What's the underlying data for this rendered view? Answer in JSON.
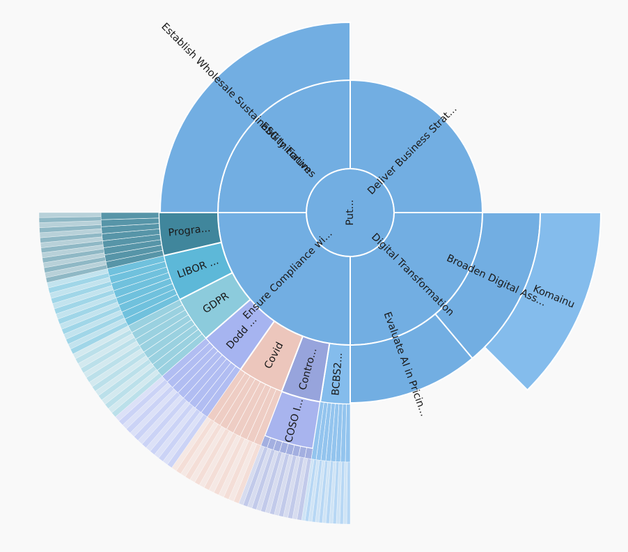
{
  "chart_data": {
    "type": "sunburst",
    "root": "Put...",
    "colors": {
      "blue": "#72aee2",
      "lightblue": "#84bcec",
      "teal": "#40869c",
      "cyan": "#5db8d8",
      "aqua": "#8ccbdc",
      "periwinkle": "#a6b4f0",
      "peach": "#ecc6bc",
      "slate": "#97a4dc",
      "lavender": "#a8b4ee"
    },
    "level1": [
      {
        "label": "Deliver Business Strat...",
        "from": 0,
        "to": 90,
        "color": "blue"
      },
      {
        "label": "Digital Transformation",
        "from": 90,
        "to": 180,
        "color": "blue"
      },
      {
        "label": "Ensure Compliance wi...",
        "from": 180,
        "to": 270,
        "color": "blue"
      },
      {
        "label": "ESG Initiatives",
        "from": 270,
        "to": 360,
        "color": "blue"
      }
    ],
    "level2": [
      {
        "label": "Broaden Digital Ass...",
        "from": 90,
        "to": 140,
        "color": "blue"
      },
      {
        "label": "Evaluate AI in Pricin...",
        "from": 140,
        "to": 180,
        "color": "blue"
      },
      {
        "label": "BCBS2...",
        "from": 180,
        "to": 189,
        "color": "lightblue"
      },
      {
        "label": "Contro...",
        "from": 189,
        "to": 201,
        "color": "slate"
      },
      {
        "label": "Covid",
        "from": 201,
        "to": 215,
        "color": "peach"
      },
      {
        "label": "Dodd ...",
        "from": 215,
        "to": 229,
        "color": "periwinkle"
      },
      {
        "label": "GDPR",
        "from": 229,
        "to": 243,
        "color": "aqua"
      },
      {
        "label": "LIBOR ...",
        "from": 243,
        "to": 257,
        "color": "cyan"
      },
      {
        "label": "Progra...",
        "from": 257,
        "to": 270,
        "color": "teal"
      },
      {
        "label": "Establish Wholesale Sustainability Forum",
        "from": 270,
        "to": 360,
        "color": "blue"
      }
    ],
    "level3": [
      {
        "label": "Komainu",
        "from": 90,
        "to": 135,
        "color": "lightblue"
      },
      {
        "label": "COSO I...",
        "from": 189,
        "to": 201,
        "color": "lavender"
      }
    ]
  }
}
